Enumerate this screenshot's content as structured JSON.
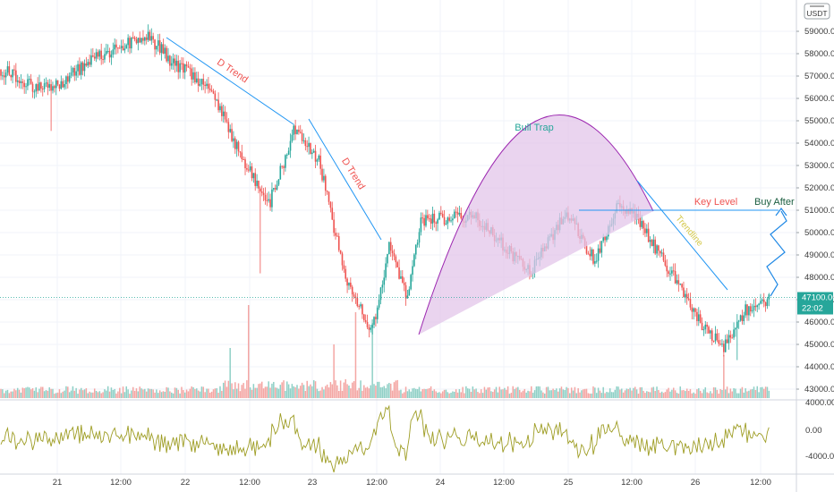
{
  "header": {
    "currency_badge": "USDT",
    "menu_icon": "hamburger-icon"
  },
  "price_axis": {
    "ticks": [
      "59000.00",
      "58000.00",
      "57000.00",
      "56000.00",
      "55000.00",
      "54000.00",
      "53000.00",
      "52000.00",
      "51000.00",
      "50000.00",
      "49000.00",
      "48000.00",
      "47000.00",
      "46000.00",
      "45000.00",
      "44000.00",
      "43000.00"
    ],
    "current_price": "47100.00",
    "countdown": "22:02"
  },
  "oscillator_axis": {
    "ticks": [
      "4000.00",
      "0.00",
      "-4000.00"
    ]
  },
  "time_axis": {
    "ticks": [
      "21",
      "12:00",
      "22",
      "12:00",
      "23",
      "12:00",
      "24",
      "12:00",
      "25",
      "12:00",
      "26",
      "12:00"
    ]
  },
  "annotations": {
    "d_trend_1": "D Trend",
    "d_trend_2": "D Trend",
    "bull_trap": "Bull Trap",
    "key_level": "Key Level",
    "trendline": "Trendline",
    "buy_after_break": "Buy After Break"
  },
  "colors": {
    "up": "#26a69a",
    "down": "#ef5350",
    "up_volume": "#8fd0c6",
    "down_volume": "#f4a6a3",
    "trend_line": "#2196f3",
    "bull_trap_fill": "#e3c6ea",
    "bull_trap_stroke": "#9c27b0",
    "oscillator": "#9e9d24",
    "price_badge": "#26a69a"
  },
  "chart_data": {
    "type": "candlestick",
    "symbol_quote": "USDT",
    "ylim": [
      42600,
      59600
    ],
    "x_labels": [
      "21",
      "12:00",
      "22",
      "12:00",
      "23",
      "12:00",
      "24",
      "12:00",
      "25",
      "12:00",
      "26",
      "12:00"
    ],
    "key_level": 51000,
    "current_price": 47100,
    "waypoints": [
      {
        "t": 0,
        "price": 57300
      },
      {
        "t": 20,
        "price": 56500
      },
      {
        "t": 35,
        "price": 56600
      },
      {
        "t": 55,
        "price": 57800
      },
      {
        "t": 88,
        "price": 58800
      },
      {
        "t": 100,
        "price": 57800
      },
      {
        "t": 125,
        "price": 56400
      },
      {
        "t": 145,
        "price": 53200
      },
      {
        "t": 160,
        "price": 51200
      },
      {
        "t": 175,
        "price": 54500
      },
      {
        "t": 190,
        "price": 53300
      },
      {
        "t": 205,
        "price": 48200
      },
      {
        "t": 222,
        "price": 45600
      },
      {
        "t": 232,
        "price": 49400
      },
      {
        "t": 243,
        "price": 47000
      },
      {
        "t": 251,
        "price": 50600
      },
      {
        "t": 265,
        "price": 50600
      },
      {
        "t": 282,
        "price": 50800
      },
      {
        "t": 300,
        "price": 49400
      },
      {
        "t": 317,
        "price": 48300
      },
      {
        "t": 338,
        "price": 50900
      },
      {
        "t": 355,
        "price": 48700
      },
      {
        "t": 369,
        "price": 51300
      },
      {
        "t": 380,
        "price": 50600
      },
      {
        "t": 397,
        "price": 48600
      },
      {
        "t": 418,
        "price": 46000
      },
      {
        "t": 432,
        "price": 44800
      },
      {
        "t": 445,
        "price": 46500
      },
      {
        "t": 459,
        "price": 47100
      }
    ],
    "oscillator_range": [
      -4000,
      4000
    ],
    "volume_spikes": [
      {
        "t": 148,
        "level": 2.6
      },
      {
        "t": 212,
        "level": 2.4
      },
      {
        "t": 222,
        "level": 2.2
      },
      {
        "t": 137,
        "level": 1.4
      },
      {
        "t": 199,
        "level": 1.5
      },
      {
        "t": 432,
        "level": 1.2
      }
    ]
  }
}
